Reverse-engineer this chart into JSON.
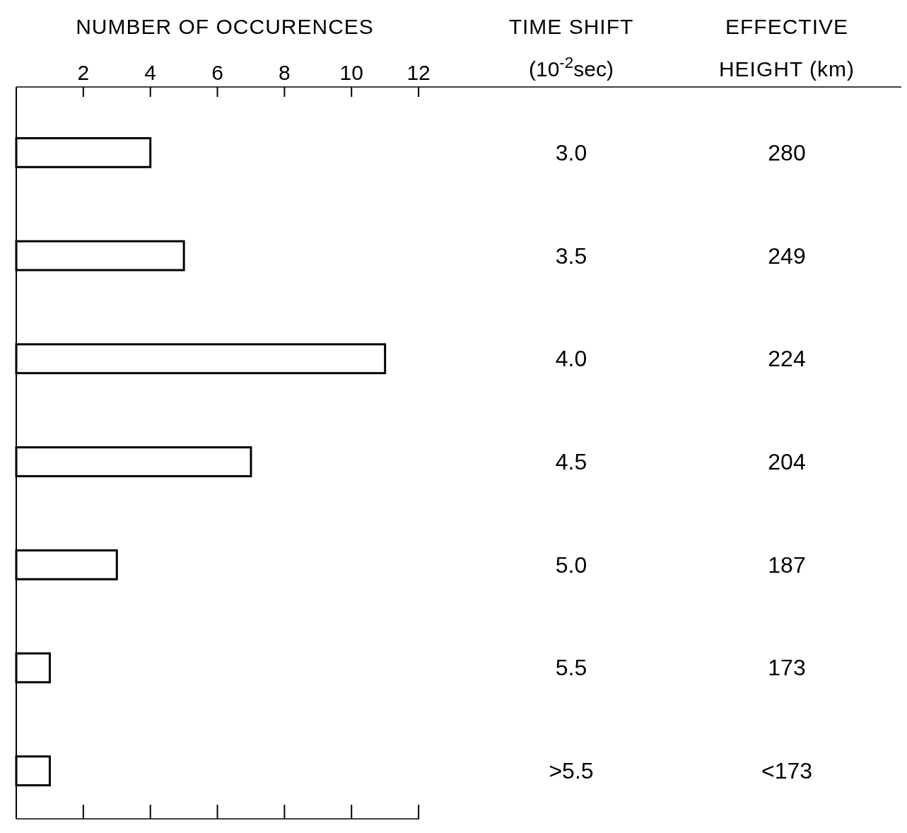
{
  "chart_data": {
    "type": "bar",
    "orientation": "horizontal",
    "xlabel": "NUMBER OF OCCURENCES",
    "ylabel": "TIME SHIFT (10$^{-2}$sec)",
    "categories": [
      "3.0",
      "3.5",
      "4.0",
      "4.5",
      "5.0",
      "5.5",
      ">5.5"
    ],
    "values": [
      4,
      5,
      11,
      7,
      3,
      1,
      1
    ],
    "color": "#ffffff",
    "xlim": [
      0,
      26.4
    ],
    "xticks": [
      2,
      4,
      6,
      8,
      10,
      12
    ],
    "annotations": [
      "EFFECTIVE HEIGHT (km)",
      "280",
      "249",
      "224",
      "204",
      "187",
      "173",
      "<173"
    ]
  }
}
